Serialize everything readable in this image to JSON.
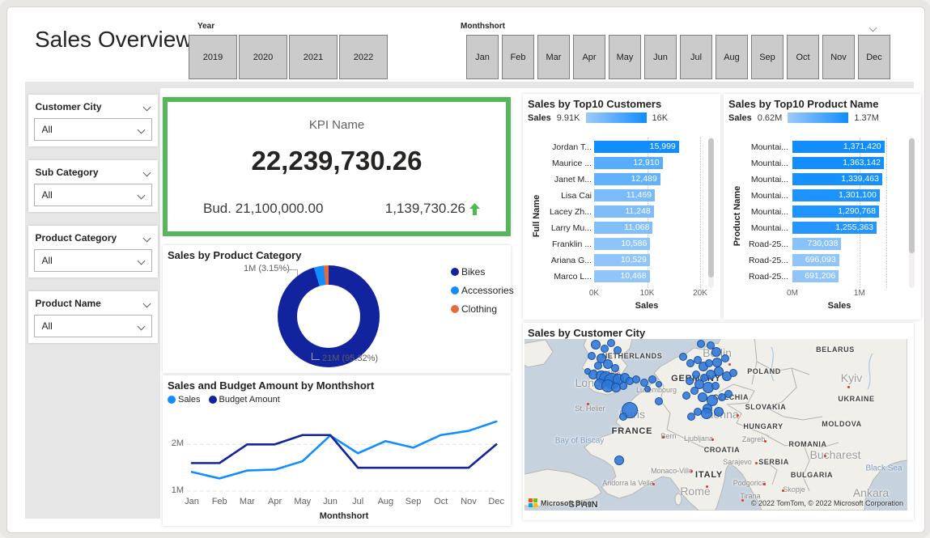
{
  "page": {
    "title": "Sales Overview"
  },
  "header": {
    "year_slicer": {
      "label": "Year",
      "options": [
        "2019",
        "2020",
        "2021",
        "2022"
      ]
    },
    "month_slicer": {
      "label": "Monthshort",
      "options": [
        "Jan",
        "Feb",
        "Mar",
        "Apr",
        "May",
        "Jun",
        "Jul",
        "Aug",
        "Sep",
        "Oct",
        "Nov",
        "Dec"
      ]
    }
  },
  "filters": [
    {
      "label": "Customer City",
      "value": "All"
    },
    {
      "label": "Sub Category",
      "value": "All"
    },
    {
      "label": "Product Category",
      "value": "All"
    },
    {
      "label": "Product Name",
      "value": "All"
    }
  ],
  "kpi": {
    "title": "KPI Name",
    "value": "22,239,730.26",
    "budget": "Bud. 21,100,000.00",
    "variance": "1,139,730.26",
    "trend": "up",
    "border_color": "#57B65B",
    "arrow_color": "#4CBB4C"
  },
  "chart_data": [
    {
      "id": "sales_by_product_category",
      "type": "pie",
      "title": "Sales by Product Category",
      "slices": [
        {
          "label": "Bikes",
          "percent": 95.32,
          "value_label": "21M",
          "color": "#12239E"
        },
        {
          "label": "Accessories",
          "percent": 3.15,
          "value_label": "1M",
          "color": "#118DFF"
        },
        {
          "label": "Clothing",
          "percent": 1.53,
          "value_label": "",
          "color": "#E66C37"
        }
      ],
      "callouts": [
        {
          "text": "1M (3.15%)"
        },
        {
          "text": "21M (95.32%)"
        }
      ],
      "legend_position": "right"
    },
    {
      "id": "sales_and_budget_by_month",
      "type": "line",
      "title": "Sales and Budget Amount by Monthshort",
      "categories": [
        "Jan",
        "Feb",
        "Mar",
        "Apr",
        "May",
        "Jun",
        "Jul",
        "Aug",
        "Sep",
        "Oct",
        "Nov",
        "Dec"
      ],
      "series": [
        {
          "name": "Sales",
          "color": "#118DFF",
          "values": [
            1.41,
            1.27,
            1.44,
            1.46,
            1.64,
            2.19,
            1.81,
            2.07,
            1.93,
            2.2,
            2.29,
            2.49
          ]
        },
        {
          "name": "Budget Amount",
          "color": "#12239E",
          "values": [
            1.6,
            1.6,
            2.0,
            2.0,
            2.2,
            2.2,
            1.5,
            1.5,
            1.5,
            1.5,
            1.5,
            2.0
          ]
        }
      ],
      "unit": "M",
      "ylim": [
        1.0,
        2.75
      ],
      "yticks": [
        {
          "v": 1,
          "label": "1M"
        },
        {
          "v": 2,
          "label": "2M"
        }
      ],
      "xlabel": "Monthshort",
      "grid": "dashed-horizontal"
    },
    {
      "id": "sales_by_top10_customers",
      "type": "bar",
      "title": "Sales by Top10 Customers",
      "color_legend": {
        "measure": "Sales",
        "min_label": "9.91K",
        "max_label": "16K",
        "min_color": "#9DCBF9",
        "max_color": "#118DFF"
      },
      "min_value": 9910,
      "max_value": 16000,
      "axis_max": 20000,
      "xticks": [
        {
          "v": 0,
          "label": "0K"
        },
        {
          "v": 10000,
          "label": "10K"
        },
        {
          "v": 20000,
          "label": "20K"
        }
      ],
      "ylabel": "Full Name",
      "xlabel": "Sales",
      "bars": [
        {
          "label": "Jordan T...",
          "value": 15999,
          "value_label": "15,999"
        },
        {
          "label": "Maurice ...",
          "value": 12910,
          "value_label": "12,910"
        },
        {
          "label": "Janet M...",
          "value": 12489,
          "value_label": "12,489"
        },
        {
          "label": "Lisa Cai",
          "value": 11469,
          "value_label": "11,469"
        },
        {
          "label": "Lacey Zh...",
          "value": 11248,
          "value_label": "11,248"
        },
        {
          "label": "Larry Mu...",
          "value": 11068,
          "value_label": "11,068"
        },
        {
          "label": "Franklin ...",
          "value": 10586,
          "value_label": "10,586"
        },
        {
          "label": "Ariana G...",
          "value": 10529,
          "value_label": "10,529"
        },
        {
          "label": "Marco L...",
          "value": 10468,
          "value_label": "10,468"
        }
      ],
      "scrollbar": true
    },
    {
      "id": "sales_by_top10_product_name",
      "type": "bar",
      "title": "Sales by Top10 Product Name",
      "color_legend": {
        "measure": "Sales",
        "min_label": "0.62M",
        "max_label": "1.37M",
        "min_color": "#9DCBF9",
        "max_color": "#118DFF"
      },
      "min_value": 620000,
      "max_value": 1370000,
      "axis_max": 1400000,
      "xticks": [
        {
          "v": 0,
          "label": "0M"
        },
        {
          "v": 1000000,
          "label": "1M"
        }
      ],
      "ylabel": "Product Name",
      "xlabel": "Sales",
      "bars": [
        {
          "label": "Mountai...",
          "value": 1371420,
          "value_label": "1,371,420"
        },
        {
          "label": "Mountai...",
          "value": 1363142,
          "value_label": "1,363,142"
        },
        {
          "label": "Mountai...",
          "value": 1339463,
          "value_label": "1,339,463"
        },
        {
          "label": "Mountai...",
          "value": 1301100,
          "value_label": "1,301,100"
        },
        {
          "label": "Mountai...",
          "value": 1290768,
          "value_label": "1,290,768"
        },
        {
          "label": "Mountai...",
          "value": 1255363,
          "value_label": "1,255,363"
        },
        {
          "label": "Road-25...",
          "value": 730038,
          "value_label": "730,038"
        },
        {
          "label": "Road-25...",
          "value": 696093,
          "value_label": "696,093"
        },
        {
          "label": "Road-25...",
          "value": 691206,
          "value_label": "691,206"
        }
      ],
      "scrollbar": true
    },
    {
      "id": "sales_by_customer_city",
      "type": "scatter",
      "title": "Sales by Customer City",
      "provider_label": "Microsoft Bing",
      "attribution": "© 2022 TomTom, © 2022 Microsoft Corporation",
      "bubble_color": "#2D78D7",
      "labels": [
        {
          "t": "NETHERLANDS",
          "x": 133,
          "y": 21,
          "c": "co"
        },
        {
          "t": "BELARUS",
          "x": 384,
          "y": 13,
          "c": "co"
        },
        {
          "t": "POLAND",
          "x": 296,
          "y": 40,
          "c": "co"
        },
        {
          "t": "GERMANY",
          "x": 212,
          "y": 49,
          "c": "colg"
        },
        {
          "t": "CZECHIA",
          "x": 255,
          "y": 72,
          "c": "co"
        },
        {
          "t": "SLOVAKIA",
          "x": 298,
          "y": 84,
          "c": "co"
        },
        {
          "t": "UKRAINE",
          "x": 410,
          "y": 74,
          "c": "co"
        },
        {
          "t": "HUNGARY",
          "x": 295,
          "y": 108,
          "c": "co"
        },
        {
          "t": "MOLDOVA",
          "x": 392,
          "y": 105,
          "c": "co"
        },
        {
          "t": "FRANCE",
          "x": 133,
          "y": 114,
          "c": "colg"
        },
        {
          "t": "ROMANIA",
          "x": 350,
          "y": 130,
          "c": "co"
        },
        {
          "t": "CROATIA",
          "x": 244,
          "y": 137,
          "c": "co"
        },
        {
          "t": "SERBIA",
          "x": 308,
          "y": 152,
          "c": "co"
        },
        {
          "t": "ITALY",
          "x": 228,
          "y": 168,
          "c": "colg"
        },
        {
          "t": "BULGARIA",
          "x": 355,
          "y": 168,
          "c": "co"
        },
        {
          "t": "SPAIN",
          "x": 73,
          "y": 205,
          "c": "colg"
        },
        {
          "t": "Berlin",
          "x": 238,
          "y": 17,
          "c": "cilg"
        },
        {
          "t": "London",
          "x": 86,
          "y": 54,
          "c": "cilg"
        },
        {
          "t": "Paris",
          "x": 133,
          "y": 93,
          "c": "cilg"
        },
        {
          "t": "Vienna",
          "x": 243,
          "y": 93,
          "c": "cilg"
        },
        {
          "t": "Kyiv",
          "x": 404,
          "y": 48,
          "c": "cilg"
        },
        {
          "t": "Rome",
          "x": 211,
          "y": 188,
          "c": "cilg"
        },
        {
          "t": "Bucharest",
          "x": 384,
          "y": 143,
          "c": "cilg"
        },
        {
          "t": "Ankara",
          "x": 428,
          "y": 190,
          "c": "cilg"
        },
        {
          "t": "Brussels",
          "x": 101,
          "y": 41,
          "c": "ci"
        },
        {
          "t": "Luxembourg",
          "x": 163,
          "y": 63,
          "c": "ci"
        },
        {
          "t": "St. Helier",
          "x": 81,
          "y": 86,
          "c": "ci"
        },
        {
          "t": "Bern",
          "x": 178,
          "y": 120,
          "c": "ci"
        },
        {
          "t": "Ljubljana",
          "x": 215,
          "y": 123,
          "c": "ci"
        },
        {
          "t": "Zagreb",
          "x": 283,
          "y": 124,
          "c": "ci"
        },
        {
          "t": "Sarajevo",
          "x": 263,
          "y": 152,
          "c": "ci"
        },
        {
          "t": "Monaco-Ville",
          "x": 182,
          "y": 163,
          "c": "ci"
        },
        {
          "t": "Andorra la Vella",
          "x": 128,
          "y": 178,
          "c": "ci"
        },
        {
          "t": "Podgorica",
          "x": 278,
          "y": 178,
          "c": "ci"
        },
        {
          "t": "Skopje",
          "x": 333,
          "y": 186,
          "c": "ci"
        },
        {
          "t": "Tirana",
          "x": 279,
          "y": 194,
          "c": "ci"
        },
        {
          "t": "Bay of Biscay",
          "x": 68,
          "y": 126,
          "c": "wa"
        },
        {
          "t": "Black Sea",
          "x": 444,
          "y": 160,
          "c": "wa"
        }
      ],
      "capital_dots": [
        [
          113,
          42
        ],
        [
          152,
          61
        ],
        [
          77,
          79
        ],
        [
          170,
          120
        ],
        [
          231,
          123
        ],
        [
          296,
          125
        ],
        [
          285,
          152
        ],
        [
          370,
          143
        ],
        [
          295,
          178
        ],
        [
          318,
          186
        ],
        [
          224,
          181
        ],
        [
          268,
          198
        ],
        [
          262,
          93
        ],
        [
          252,
          30
        ],
        [
          205,
          162
        ],
        [
          158,
          178
        ],
        [
          399,
          58
        ]
      ],
      "bubbles": [
        [
          88,
          7,
          5
        ],
        [
          99,
          12,
          4
        ],
        [
          107,
          5,
          4
        ],
        [
          83,
          21,
          4
        ],
        [
          95,
          24,
          5
        ],
        [
          115,
          14,
          4
        ],
        [
          91,
          33,
          4
        ],
        [
          103,
          31,
          5
        ],
        [
          112,
          36,
          4
        ],
        [
          85,
          44,
          5
        ],
        [
          95,
          46,
          6
        ],
        [
          101,
          49,
          8
        ],
        [
          108,
          52,
          9
        ],
        [
          116,
          50,
          6
        ],
        [
          124,
          48,
          5
        ],
        [
          93,
          56,
          6
        ],
        [
          103,
          58,
          7
        ],
        [
          113,
          60,
          5
        ],
        [
          130,
          52,
          4
        ],
        [
          138,
          50,
          4
        ],
        [
          122,
          58,
          4
        ],
        [
          78,
          40,
          3
        ],
        [
          148,
          54,
          4
        ],
        [
          158,
          50,
          4
        ],
        [
          166,
          56,
          3
        ],
        [
          152,
          62,
          3
        ],
        [
          196,
          22,
          4
        ],
        [
          205,
          30,
          4
        ],
        [
          214,
          26,
          4
        ],
        [
          221,
          34,
          5
        ],
        [
          228,
          30,
          4
        ],
        [
          237,
          16,
          5
        ],
        [
          230,
          8,
          4
        ],
        [
          218,
          6,
          4
        ],
        [
          238,
          29,
          5
        ],
        [
          248,
          24,
          4
        ],
        [
          230,
          44,
          5
        ],
        [
          240,
          40,
          5
        ],
        [
          250,
          46,
          5
        ],
        [
          258,
          42,
          4
        ],
        [
          222,
          48,
          4
        ],
        [
          212,
          44,
          4
        ],
        [
          204,
          52,
          4
        ],
        [
          216,
          56,
          5
        ],
        [
          227,
          60,
          6
        ],
        [
          236,
          58,
          4
        ],
        [
          210,
          64,
          4
        ],
        [
          200,
          70,
          4
        ],
        [
          220,
          72,
          5
        ],
        [
          232,
          76,
          6
        ],
        [
          244,
          72,
          4
        ],
        [
          252,
          68,
          4
        ],
        [
          226,
          86,
          5
        ],
        [
          214,
          90,
          4
        ],
        [
          240,
          90,
          5
        ],
        [
          206,
          96,
          4
        ],
        [
          166,
          77,
          4
        ],
        [
          130,
          88,
          9
        ],
        [
          122,
          96,
          4
        ],
        [
          225,
          92,
          6
        ],
        [
          117,
          150,
          5
        ]
      ]
    }
  ]
}
